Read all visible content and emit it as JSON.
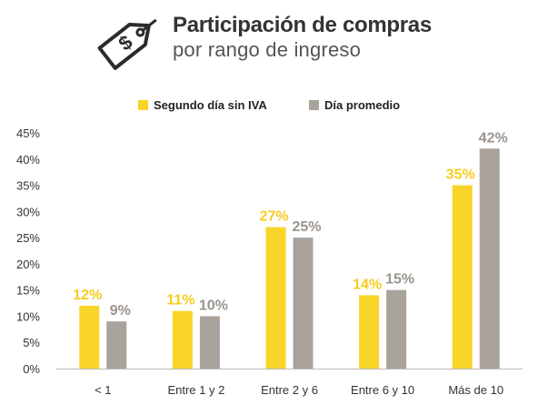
{
  "header": {
    "title": "Participación de compras",
    "subtitle": "por rango de ingreso",
    "icon": "price-tag-dollar-icon"
  },
  "colors": {
    "series1": "#f8d528",
    "series2": "#a9a39c",
    "label1": "#f6cc1f",
    "label2": "#9a948e",
    "axis": "#bbbbbb",
    "text": "#333333"
  },
  "chart_data": {
    "type": "bar",
    "categories": [
      "< 1",
      "Entre 1 y 2",
      "Entre 2 y 6",
      "Entre 6 y 10",
      "Más de 10"
    ],
    "series": [
      {
        "name": "Segundo día sin IVA",
        "values": [
          12,
          11,
          27,
          14,
          35
        ],
        "labels": [
          "12%",
          "11%",
          "27%",
          "14%",
          "35%"
        ]
      },
      {
        "name": "Día promedio",
        "values": [
          9,
          10,
          25,
          15,
          42
        ],
        "labels": [
          "9%",
          "10%",
          "25%",
          "15%",
          "42%"
        ]
      }
    ],
    "yticks": [
      "0%",
      "5%",
      "10%",
      "15%",
      "20%",
      "25%",
      "30%",
      "35%",
      "40%",
      "45%"
    ],
    "ylim": [
      0,
      45
    ],
    "grid": false,
    "legend": "top-center",
    "title": "Participación de compras",
    "subtitle": "por rango de ingreso",
    "xlabel": "",
    "ylabel": ""
  }
}
